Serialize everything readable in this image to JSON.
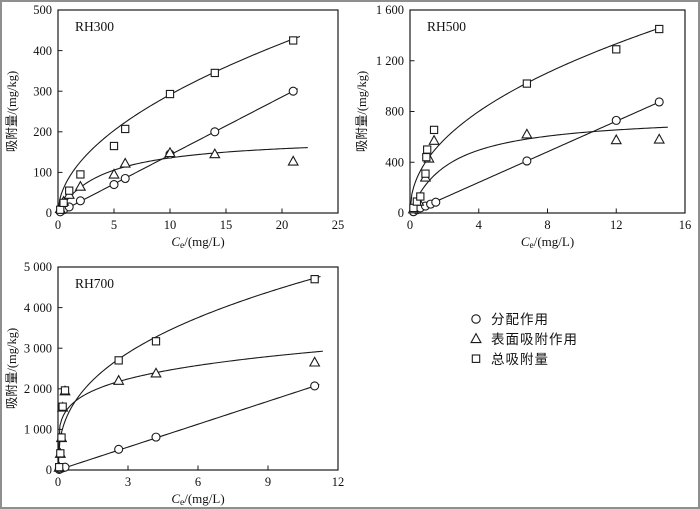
{
  "page": {
    "background": "#ffffff",
    "frame_color": "#8f8f8f",
    "ink_color": "#1a1a1a"
  },
  "axis_label": {
    "y": "吸附量/(mg/kg)",
    "x_var": "C",
    "x_sub": "e",
    "x_unit": "/(mg/L)"
  },
  "legend": {
    "items": [
      {
        "marker": "circle",
        "label": "分配作用"
      },
      {
        "marker": "triangle",
        "label": "表面吸附作用"
      },
      {
        "marker": "square",
        "label": "总吸附量"
      }
    ]
  },
  "chart_data": [
    {
      "type": "scatter",
      "title": "RH300",
      "xlabel": "Ce/(mg/L)",
      "ylabel": "吸附量/(mg/kg)",
      "xlim": [
        0,
        25
      ],
      "ylim": [
        0,
        500
      ],
      "xticks": [
        0,
        5,
        10,
        15,
        20,
        25
      ],
      "xtick_labels": [
        "0",
        "5",
        "10",
        "15",
        "20",
        "25"
      ],
      "yticks": [
        0,
        100,
        200,
        300,
        400,
        500
      ],
      "ytick_labels": [
        "0",
        "100",
        "200",
        "300",
        "400",
        "500"
      ],
      "grid": false,
      "series": [
        {
          "name": "分配作用",
          "marker": "circle",
          "points": [
            [
              0.2,
              3
            ],
            [
              0.5,
              8
            ],
            [
              1,
              15
            ],
            [
              2,
              30
            ],
            [
              5,
              70
            ],
            [
              6,
              85
            ],
            [
              10,
              145
            ],
            [
              14,
              200
            ],
            [
              21,
              300
            ]
          ],
          "fit": {
            "type": "linear",
            "m": 14.3,
            "x_end": 21.4
          }
        },
        {
          "name": "表面吸附作用",
          "marker": "triangle",
          "points": [
            [
              0.2,
              10
            ],
            [
              0.5,
              28
            ],
            [
              1,
              45
            ],
            [
              2,
              65
            ],
            [
              5,
              95
            ],
            [
              6,
              122
            ],
            [
              10,
              148
            ],
            [
              14,
              145
            ],
            [
              21,
              127
            ]
          ],
          "fit": {
            "type": "langmuir",
            "qm": 190,
            "k": 4,
            "x_end": 22.3
          }
        },
        {
          "name": "总吸附量",
          "marker": "square",
          "points": [
            [
              0.2,
              8
            ],
            [
              0.5,
              25
            ],
            [
              1,
              55
            ],
            [
              2,
              95
            ],
            [
              5,
              165
            ],
            [
              6,
              207
            ],
            [
              10,
              293
            ],
            [
              14,
              345
            ],
            [
              21,
              425
            ]
          ],
          "fit": {
            "type": "power",
            "a": 88,
            "b": 0.52,
            "x_end": 21.6
          }
        }
      ]
    },
    {
      "type": "scatter",
      "title": "RH500",
      "xlabel": "Ce/(mg/L)",
      "ylabel": "吸附量/(mg/kg)",
      "xlim": [
        0,
        16
      ],
      "ylim": [
        0,
        1600
      ],
      "xticks": [
        0,
        4,
        8,
        12,
        16
      ],
      "xtick_labels": [
        "0",
        "4",
        "8",
        "12",
        "16"
      ],
      "yticks": [
        0,
        400,
        800,
        1200,
        1600
      ],
      "ytick_labels": [
        "0",
        "400",
        "800",
        "1 200",
        "1 600"
      ],
      "grid": false,
      "series": [
        {
          "name": "分配作用",
          "marker": "circle",
          "points": [
            [
              0.2,
              10
            ],
            [
              0.4,
              25
            ],
            [
              0.6,
              40
            ],
            [
              0.9,
              55
            ],
            [
              1.2,
              70
            ],
            [
              1.5,
              85
            ],
            [
              6.8,
              410
            ],
            [
              12,
              730
            ],
            [
              14.5,
              875
            ]
          ],
          "fit": {
            "type": "linear",
            "m": 60.3,
            "x_end": 14.6
          }
        },
        {
          "name": "表面吸附作用",
          "marker": "triangle",
          "points": [
            [
              0.2,
              30
            ],
            [
              0.5,
              90
            ],
            [
              0.9,
              280
            ],
            [
              1.1,
              430
            ],
            [
              1.4,
              570
            ],
            [
              6.8,
              620
            ],
            [
              12,
              575
            ],
            [
              14.5,
              580
            ]
          ],
          "fit": {
            "type": "langmuir",
            "qm": 780,
            "k": 2.3,
            "x_end": 15.0
          }
        },
        {
          "name": "总吸附量",
          "marker": "square",
          "points": [
            [
              0.2,
              40
            ],
            [
              0.4,
              90
            ],
            [
              0.6,
              130
            ],
            [
              0.9,
              310
            ],
            [
              0.95,
              440
            ],
            [
              1.0,
              500
            ],
            [
              1.4,
              655
            ],
            [
              6.8,
              1020
            ],
            [
              12,
              1290
            ],
            [
              14.5,
              1450
            ]
          ],
          "fit": {
            "type": "power",
            "a": 420,
            "b": 0.465,
            "x_end": 14.7
          }
        }
      ]
    },
    {
      "type": "scatter",
      "title": "RH700",
      "xlabel": "Ce/(mg/L)",
      "ylabel": "吸附量/(mg/kg)",
      "xlim": [
        0,
        12
      ],
      "ylim": [
        0,
        5000
      ],
      "xticks": [
        0,
        3,
        6,
        9,
        12
      ],
      "xtick_labels": [
        "0",
        "3",
        "6",
        "9",
        "12"
      ],
      "yticks": [
        0,
        1000,
        2000,
        3000,
        4000,
        5000
      ],
      "ytick_labels": [
        "0",
        "1 000",
        "2 000",
        "3 000",
        "4 000",
        "5 000"
      ],
      "grid": false,
      "series": [
        {
          "name": "分配作用",
          "marker": "circle",
          "points": [
            [
              0.05,
              15
            ],
            [
              0.1,
              30
            ],
            [
              0.2,
              50
            ],
            [
              0.3,
              70
            ],
            [
              2.6,
              510
            ],
            [
              4.2,
              810
            ],
            [
              11,
              2070
            ]
          ],
          "fit": {
            "type": "linear",
            "m": 188,
            "x_end": 11.2
          }
        },
        {
          "name": "表面吸附作用",
          "marker": "triangle",
          "points": [
            [
              0.05,
              60
            ],
            [
              0.1,
              400
            ],
            [
              0.15,
              790
            ],
            [
              0.2,
              1540
            ],
            [
              0.3,
              1940
            ],
            [
              2.6,
              2200
            ],
            [
              4.2,
              2380
            ],
            [
              11,
              2650
            ]
          ],
          "fit": {
            "type": "power",
            "a": 1800,
            "b": 0.2,
            "x_end": 11.35
          }
        },
        {
          "name": "总吸附量",
          "marker": "square",
          "points": [
            [
              0.05,
              70
            ],
            [
              0.1,
              410
            ],
            [
              0.15,
              800
            ],
            [
              0.2,
              1560
            ],
            [
              0.3,
              1960
            ],
            [
              2.6,
              2700
            ],
            [
              4.2,
              3170
            ],
            [
              11,
              4700
            ]
          ],
          "fit": {
            "type": "power",
            "a": 1900,
            "b": 0.38,
            "x_end": 11.25
          }
        }
      ]
    }
  ]
}
